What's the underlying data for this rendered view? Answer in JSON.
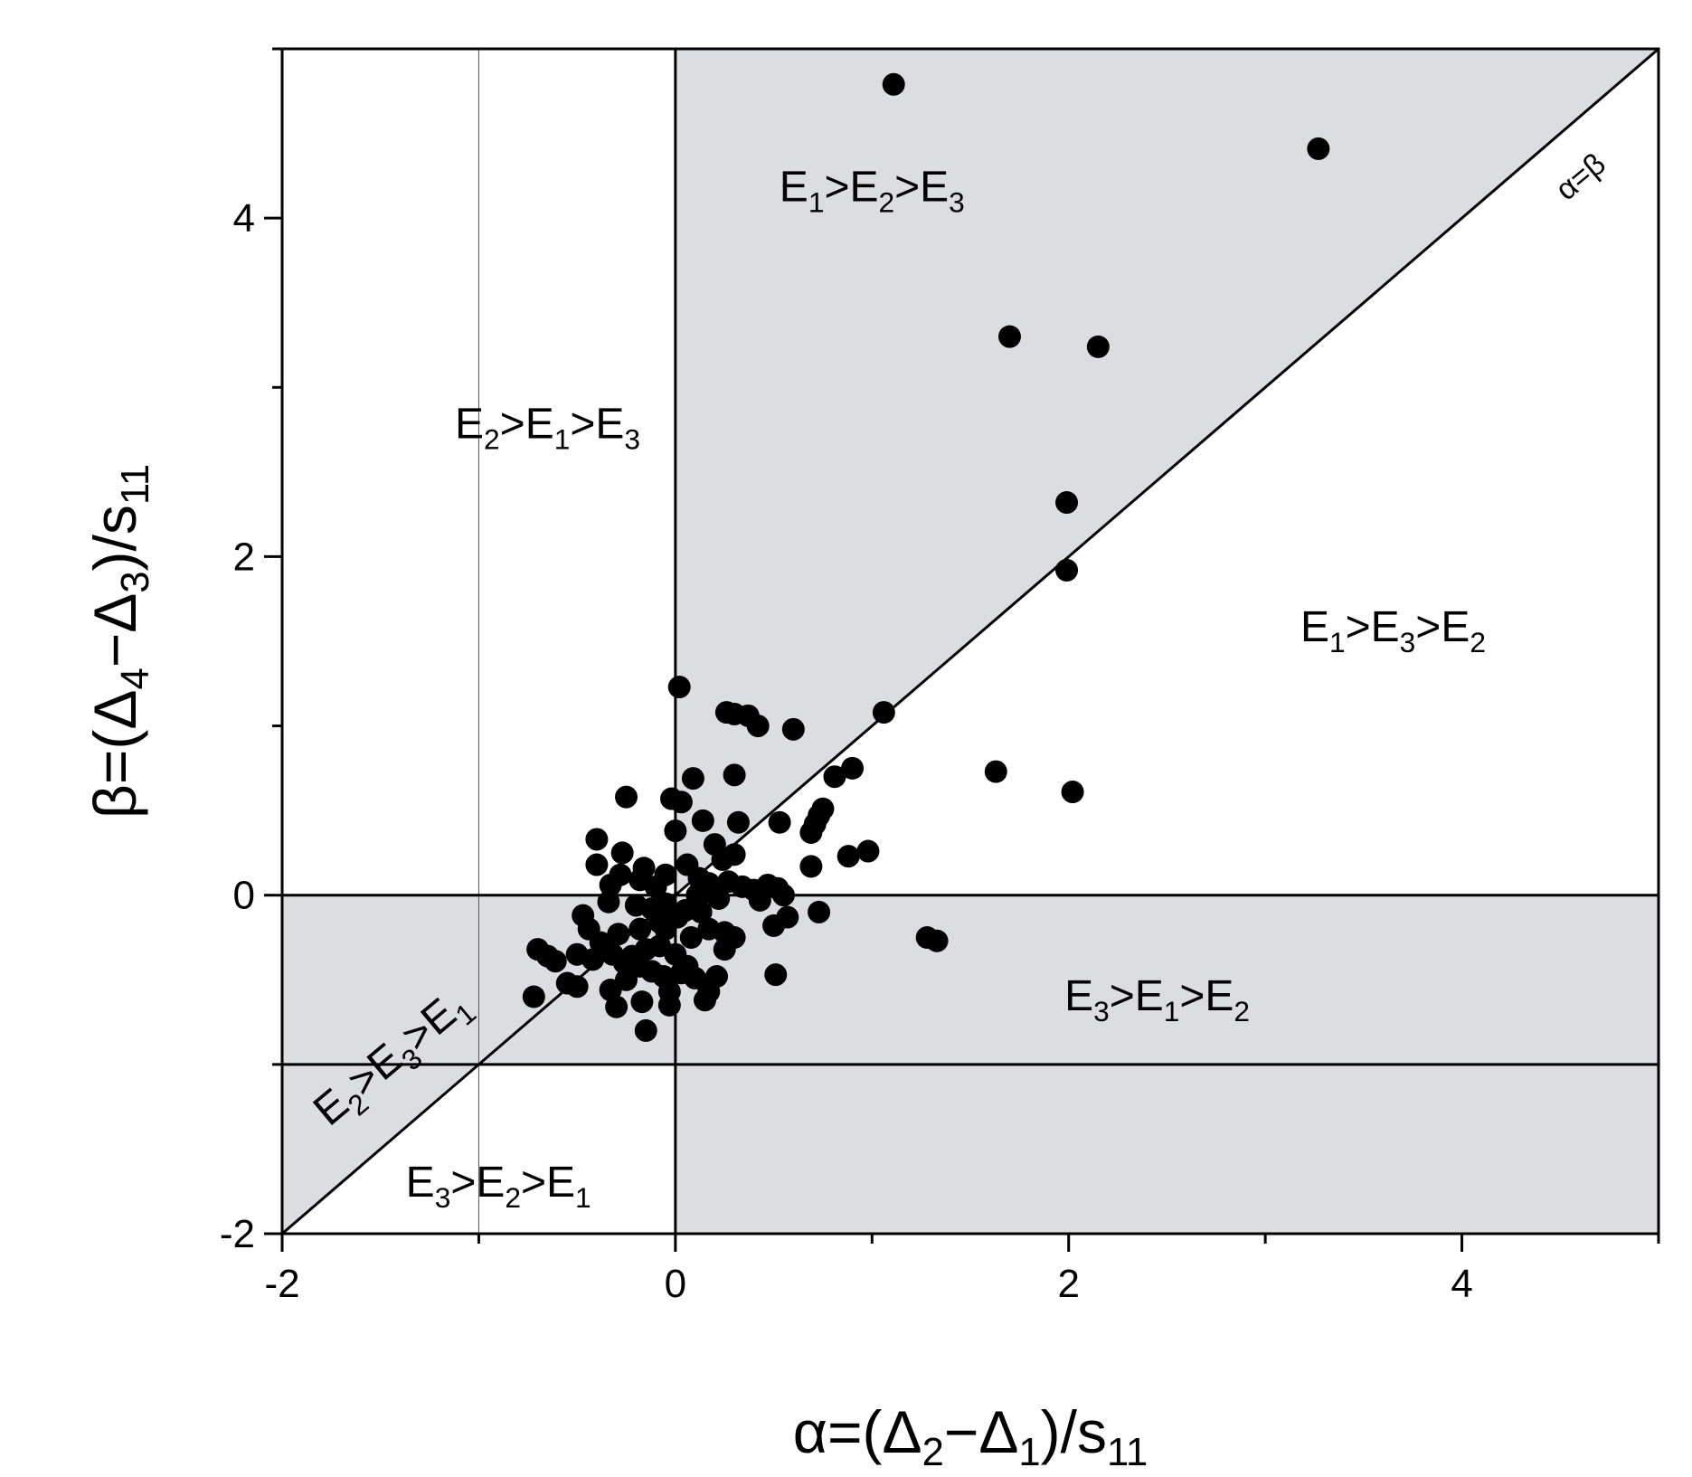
{
  "chart_data": {
    "type": "scatter",
    "xlabel": {
      "pre": "α=(Δ",
      "s1": "2",
      "mid": "−Δ",
      "s2": "1",
      "post": ")/s",
      "s3": "11"
    },
    "ylabel": {
      "pre": "β=(Δ",
      "s1": "4",
      "mid": "−Δ",
      "s2": "3",
      "post": ")/s",
      "s3": "11"
    },
    "xlim": [
      -2,
      5
    ],
    "ylim": [
      -2,
      5
    ],
    "xticks": [
      -2,
      0,
      2,
      4
    ],
    "yticks": [
      -2,
      0,
      2,
      4
    ],
    "grid": false,
    "shaded_color": "#dcdde0",
    "point_color": "#000000",
    "reference_lines": {
      "diagonal_label": "α=β",
      "vertical_x": [
        -1,
        0
      ],
      "horizontal_y": [
        -1,
        0
      ]
    },
    "regions": [
      {
        "id": "e1e2e3",
        "parts": [
          "E",
          "1",
          ">E",
          "2",
          ">E",
          "3"
        ]
      },
      {
        "id": "e2e1e3",
        "parts": [
          "E",
          "2",
          ">E",
          "1",
          ">E",
          "3"
        ]
      },
      {
        "id": "e1e3e2",
        "parts": [
          "E",
          "1",
          ">E",
          "3",
          ">E",
          "2"
        ]
      },
      {
        "id": "e3e1e2",
        "parts": [
          "E",
          "3",
          ">E",
          "1",
          ">E",
          "2"
        ]
      },
      {
        "id": "e2e3e1",
        "parts": [
          "E",
          "2",
          ">E",
          "3",
          ">E",
          "1"
        ]
      },
      {
        "id": "e3e2e1",
        "parts": [
          "E",
          "3",
          ">E",
          "2",
          ">E",
          "1"
        ]
      }
    ],
    "points": [
      [
        1.11,
        4.79
      ],
      [
        3.27,
        4.41
      ],
      [
        1.7,
        3.3
      ],
      [
        2.15,
        3.24
      ],
      [
        1.99,
        2.32
      ],
      [
        1.99,
        1.92
      ],
      [
        1.06,
        1.08
      ],
      [
        1.63,
        0.73
      ],
      [
        2.02,
        0.61
      ],
      [
        1.28,
        -0.25
      ],
      [
        1.33,
        -0.27
      ],
      [
        0.02,
        1.23
      ],
      [
        0.26,
        1.08
      ],
      [
        0.3,
        1.07
      ],
      [
        0.37,
        1.06
      ],
      [
        0.42,
        1.0
      ],
      [
        0.6,
        0.98
      ],
      [
        0.09,
        0.69
      ],
      [
        0.3,
        0.71
      ],
      [
        0.81,
        0.7
      ],
      [
        0.9,
        0.75
      ],
      [
        -0.25,
        0.58
      ],
      [
        -0.02,
        0.57
      ],
      [
        0.03,
        0.55
      ],
      [
        0.75,
        0.51
      ],
      [
        0.73,
        0.47
      ],
      [
        0.14,
        0.44
      ],
      [
        0.32,
        0.43
      ],
      [
        0.53,
        0.43
      ],
      [
        0.71,
        0.42
      ],
      [
        0.69,
        0.37
      ],
      [
        0.0,
        0.38
      ],
      [
        0.2,
        0.3
      ],
      [
        -0.4,
        0.33
      ],
      [
        -0.27,
        0.25
      ],
      [
        0.88,
        0.23
      ],
      [
        0.98,
        0.26
      ],
      [
        0.24,
        0.21
      ],
      [
        0.3,
        0.24
      ],
      [
        -0.4,
        0.18
      ],
      [
        0.69,
        0.17
      ],
      [
        -0.16,
        0.16
      ],
      [
        -0.28,
        0.12
      ],
      [
        -0.33,
        0.06
      ],
      [
        -0.18,
        0.09
      ],
      [
        -0.05,
        0.12
      ],
      [
        0.06,
        0.18
      ],
      [
        0.12,
        0.1
      ],
      [
        0.17,
        0.07
      ],
      [
        0.27,
        0.08
      ],
      [
        0.34,
        0.05
      ],
      [
        0.4,
        0.03
      ],
      [
        0.47,
        0.06
      ],
      [
        0.52,
        0.04
      ],
      [
        0.43,
        -0.03
      ],
      [
        0.55,
        0.0
      ],
      [
        0.16,
        0.02
      ],
      [
        0.22,
        -0.02
      ],
      [
        -0.34,
        -0.04
      ],
      [
        -0.2,
        -0.06
      ],
      [
        -0.12,
        -0.08
      ],
      [
        -0.05,
        -0.05
      ],
      [
        0.05,
        -0.09
      ],
      [
        0.13,
        -0.1
      ],
      [
        0.5,
        -0.18
      ],
      [
        0.57,
        -0.13
      ],
      [
        0.73,
        -0.1
      ],
      [
        -0.47,
        -0.12
      ],
      [
        -0.44,
        -0.2
      ],
      [
        -0.38,
        -0.28
      ],
      [
        -0.29,
        -0.23
      ],
      [
        -0.18,
        -0.2
      ],
      [
        -0.05,
        -0.2
      ],
      [
        0.08,
        -0.25
      ],
      [
        0.17,
        -0.2
      ],
      [
        0.25,
        -0.22
      ],
      [
        0.3,
        -0.25
      ],
      [
        0.25,
        -0.32
      ],
      [
        -0.5,
        -0.35
      ],
      [
        -0.42,
        -0.38
      ],
      [
        -0.32,
        -0.35
      ],
      [
        -0.22,
        -0.36
      ],
      [
        -0.15,
        -0.32
      ],
      [
        -0.08,
        -0.3
      ],
      [
        0.0,
        -0.35
      ],
      [
        0.06,
        -0.42
      ],
      [
        -0.7,
        -0.32
      ],
      [
        -0.65,
        -0.36
      ],
      [
        -0.61,
        -0.39
      ],
      [
        -0.26,
        -0.4
      ],
      [
        -0.18,
        -0.42
      ],
      [
        -0.12,
        -0.45
      ],
      [
        -0.06,
        -0.48
      ],
      [
        0.03,
        -0.46
      ],
      [
        0.1,
        -0.49
      ],
      [
        0.21,
        -0.48
      ],
      [
        0.51,
        -0.47
      ],
      [
        -0.55,
        -0.52
      ],
      [
        -0.5,
        -0.54
      ],
      [
        -0.33,
        -0.56
      ],
      [
        -0.25,
        -0.5
      ],
      [
        -0.03,
        -0.57
      ],
      [
        0.17,
        -0.57
      ],
      [
        0.15,
        -0.62
      ],
      [
        -0.72,
        -0.6
      ],
      [
        -0.17,
        -0.63
      ],
      [
        -0.03,
        -0.65
      ],
      [
        -0.3,
        -0.66
      ],
      [
        -0.15,
        -0.8
      ],
      [
        -0.1,
        0.05
      ],
      [
        0.01,
        -0.13
      ],
      [
        -0.08,
        -0.16
      ],
      [
        0.11,
        0.0
      ]
    ]
  }
}
